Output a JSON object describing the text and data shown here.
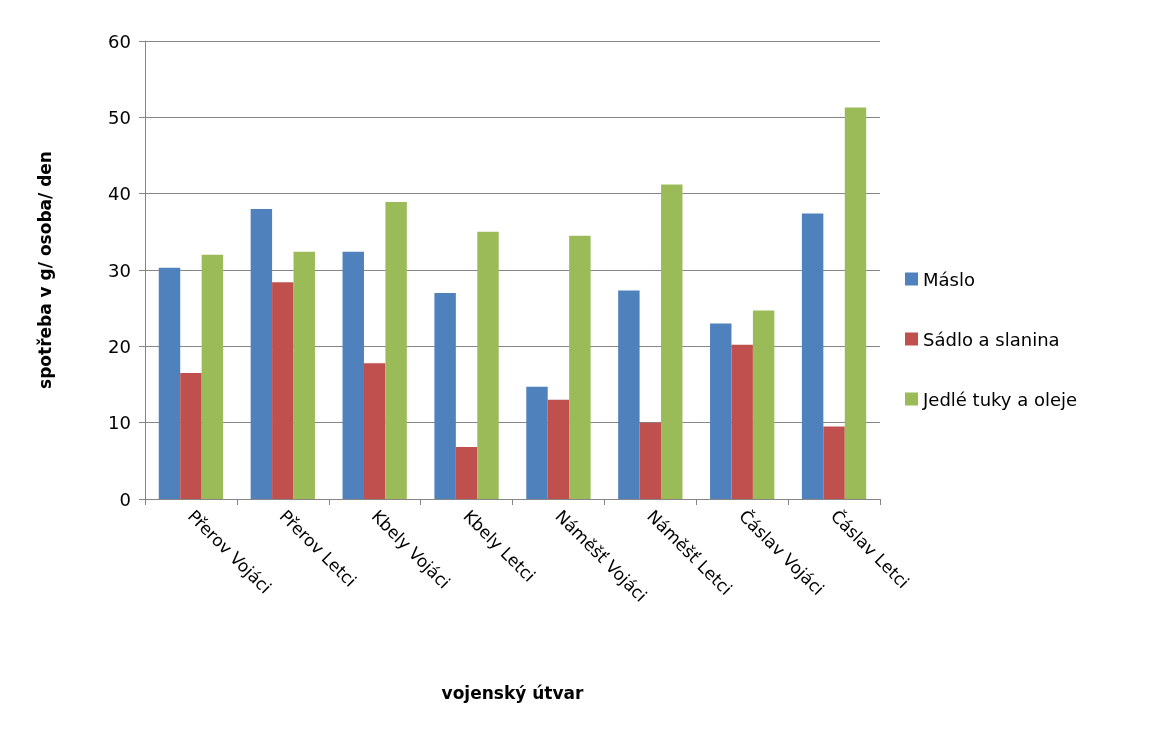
{
  "chart_data": {
    "type": "bar",
    "xlabel": "vojenský útvar",
    "ylabel": "spotřeba v g/ osoba/ den",
    "categories": [
      "Přerov Vojáci",
      "Přerov Letci",
      "Kbely Vojáci",
      "Kbely Letci",
      "Náměšť Vojáci",
      "Náměšť Letci",
      "Čáslav Vojáci",
      "Čáslav Letci"
    ],
    "series": [
      {
        "name": "Máslo",
        "color": "#4f81bd",
        "values": [
          30.3,
          38,
          32.4,
          27,
          14.7,
          27.3,
          23,
          37.4
        ]
      },
      {
        "name": "Sádlo a slanina",
        "color": "#c0504d",
        "values": [
          16.5,
          28.4,
          17.8,
          6.8,
          13,
          10,
          20.2,
          9.5
        ]
      },
      {
        "name": "Jedlé tuky a oleje",
        "color": "#9bbb59",
        "values": [
          32,
          32.4,
          38.9,
          35,
          34.5,
          41.2,
          24.7,
          51.3
        ]
      }
    ],
    "ylim": [
      0,
      60
    ],
    "yticks": [
      0,
      10,
      20,
      30,
      40,
      50,
      60
    ],
    "grid": "y",
    "legend": "right"
  }
}
